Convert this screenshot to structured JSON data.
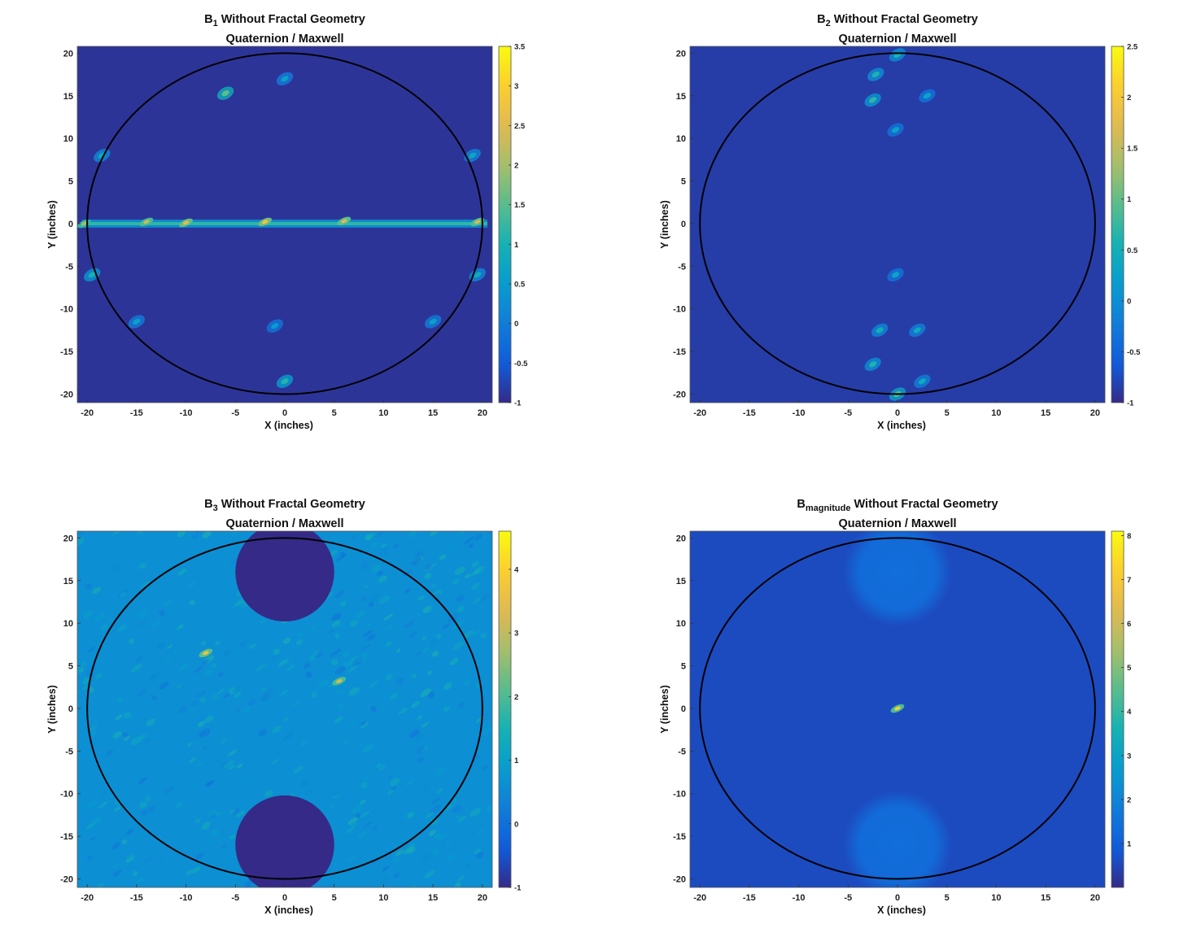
{
  "figure": {
    "panels": [
      {
        "id": "b1",
        "title_main": "B",
        "title_sub": "1",
        "title_rest": " Without Fractal Geometry",
        "subtitle": "Quaternion / Maxwell"
      },
      {
        "id": "b2",
        "title_main": "B",
        "title_sub": "2",
        "title_rest": " Without Fractal Geometry",
        "subtitle": "Quaternion / Maxwell"
      },
      {
        "id": "b3",
        "title_main": "B",
        "title_sub": "3",
        "title_rest": " Without Fractal Geometry",
        "subtitle": "Quaternion / Maxwell"
      },
      {
        "id": "bmag",
        "title_main": "B",
        "title_sub": "magnitude",
        "title_rest": " Without Fractal Geometry",
        "subtitle": "Quaternion / Maxwell"
      }
    ]
  },
  "chart_data": [
    {
      "type": "heatmap",
      "title": "B1 Without Fractal Geometry",
      "subtitle": "Quaternion / Maxwell",
      "xlabel": "X (inches)",
      "ylabel": "Y (inches)",
      "xlim": [
        -21,
        21
      ],
      "ylim": [
        -21,
        20.8
      ],
      "xticks": [
        -20,
        -15,
        -10,
        -5,
        0,
        5,
        10,
        15,
        20
      ],
      "yticks": [
        -20,
        -15,
        -10,
        -5,
        0,
        5,
        10,
        15,
        20
      ],
      "colorbar": {
        "min": -1,
        "max": 3.5,
        "ticks": [
          -1,
          -0.5,
          0,
          0.5,
          1,
          1.5,
          2,
          2.5,
          3,
          3.5
        ]
      },
      "circle": {
        "cx": 0,
        "cy": 0,
        "r": 20
      },
      "background_value": -0.9,
      "features": [
        {
          "kind": "band",
          "y": 0,
          "x0": -20.5,
          "x1": 20.5,
          "value": 1.2
        },
        {
          "kind": "blob",
          "x": -6,
          "y": 15.3,
          "value": 1.5
        },
        {
          "kind": "blob",
          "x": 0,
          "y": 17,
          "value": 0.6
        },
        {
          "kind": "blob",
          "x": -1,
          "y": -12,
          "value": 0.5
        },
        {
          "kind": "blob",
          "x": 0,
          "y": -18.5,
          "value": 1.1
        },
        {
          "kind": "blob",
          "x": -18.5,
          "y": 8,
          "value": 0.8
        },
        {
          "kind": "blob",
          "x": 19,
          "y": 8,
          "value": 0.7
        },
        {
          "kind": "blob",
          "x": -19.5,
          "y": -6,
          "value": 1.0
        },
        {
          "kind": "blob",
          "x": 19.5,
          "y": -6,
          "value": 0.8
        },
        {
          "kind": "blob",
          "x": -15,
          "y": -11.5,
          "value": 0.6
        },
        {
          "kind": "blob",
          "x": 15,
          "y": -11.5,
          "value": 0.6
        }
      ],
      "peaks": [
        {
          "x": -20.3,
          "y": 0,
          "value": 2.0
        },
        {
          "x": -14,
          "y": 0.2,
          "value": 2.3
        },
        {
          "x": -10,
          "y": 0.1,
          "value": 2.6
        },
        {
          "x": -2,
          "y": 0.2,
          "value": 2.8
        },
        {
          "x": 6,
          "y": 0.3,
          "value": 2.5
        },
        {
          "x": 19.5,
          "y": 0.2,
          "value": 2.4
        }
      ]
    },
    {
      "type": "heatmap",
      "title": "B2 Without Fractal Geometry",
      "subtitle": "Quaternion / Maxwell",
      "xlabel": "X (inches)",
      "ylabel": "Y (inches)",
      "xlim": [
        -21,
        21
      ],
      "ylim": [
        -21,
        20.8
      ],
      "xticks": [
        -20,
        -15,
        -10,
        -5,
        0,
        5,
        10,
        15,
        20
      ],
      "yticks": [
        -20,
        -15,
        -10,
        -5,
        0,
        5,
        10,
        15,
        20
      ],
      "colorbar": {
        "min": -1,
        "max": 2.5,
        "ticks": [
          -1,
          -0.5,
          0,
          0.5,
          1,
          1.5,
          2,
          2.5
        ]
      },
      "circle": {
        "cx": 0,
        "cy": 0,
        "r": 20
      },
      "background_value": -0.85,
      "features": [
        {
          "kind": "blob",
          "x": -2.5,
          "y": 14.5,
          "value": 0.7
        },
        {
          "kind": "blob",
          "x": -2.2,
          "y": 17.5,
          "value": 0.6
        },
        {
          "kind": "blob",
          "x": 0,
          "y": 19.8,
          "value": 0.6
        },
        {
          "kind": "blob",
          "x": 3,
          "y": 15,
          "value": 0.3
        },
        {
          "kind": "blob",
          "x": -0.2,
          "y": 11,
          "value": 0.3
        },
        {
          "kind": "blob",
          "x": -0.2,
          "y": -6,
          "value": 0.3
        },
        {
          "kind": "blob",
          "x": -1.8,
          "y": -12.5,
          "value": 0.5
        },
        {
          "kind": "blob",
          "x": 2,
          "y": -12.5,
          "value": 0.4
        },
        {
          "kind": "blob",
          "x": -2.5,
          "y": -16.5,
          "value": 0.6
        },
        {
          "kind": "blob",
          "x": 2.5,
          "y": -18.5,
          "value": 0.4
        },
        {
          "kind": "blob",
          "x": 0,
          "y": -20,
          "value": 0.9
        }
      ],
      "peaks": []
    },
    {
      "type": "heatmap",
      "title": "B3 Without Fractal Geometry",
      "subtitle": "Quaternion / Maxwell",
      "xlabel": "X (inches)",
      "ylabel": "Y (inches)",
      "xlim": [
        -21,
        21
      ],
      "ylim": [
        -21,
        20.8
      ],
      "xticks": [
        -20,
        -15,
        -10,
        -5,
        0,
        5,
        10,
        15,
        20
      ],
      "yticks": [
        -20,
        -15,
        -10,
        -5,
        0,
        5,
        10,
        15,
        20
      ],
      "colorbar": {
        "min": -1,
        "max": 4.6,
        "ticks": [
          -1,
          0,
          1,
          2,
          3,
          4
        ]
      },
      "circle": {
        "cx": 0,
        "cy": 0,
        "r": 20
      },
      "background_value": 0.6,
      "speckle": true,
      "features": [
        {
          "kind": "hole",
          "x": 0,
          "y": 16,
          "r": 5,
          "value": -1
        },
        {
          "kind": "hole",
          "x": 0,
          "y": -16,
          "r": 5,
          "value": -1
        }
      ],
      "peaks": [
        {
          "x": -8,
          "y": 6.5,
          "value": 3.6
        },
        {
          "x": 5.5,
          "y": 3.2,
          "value": 3.3
        }
      ]
    },
    {
      "type": "heatmap",
      "title": "Bmagnitude Without Fractal Geometry",
      "subtitle": "Quaternion / Maxwell",
      "xlabel": "X (inches)",
      "ylabel": "Y (inches)",
      "xlim": [
        -21,
        21
      ],
      "ylim": [
        -21,
        20.8
      ],
      "xticks": [
        -20,
        -15,
        -10,
        -5,
        0,
        5,
        10,
        15,
        20
      ],
      "yticks": [
        -20,
        -15,
        -10,
        -5,
        0,
        5,
        10,
        15,
        20
      ],
      "colorbar": {
        "min": 0,
        "max": 8.1,
        "ticks": [
          1,
          2,
          3,
          4,
          5,
          6,
          7,
          8
        ]
      },
      "circle": {
        "cx": 0,
        "cy": 0,
        "r": 20
      },
      "background_value": 0.6,
      "features": [
        {
          "kind": "soft",
          "x": 0,
          "y": 16,
          "r": 5.5,
          "value": 1.4
        },
        {
          "kind": "soft",
          "x": 0,
          "y": -16,
          "r": 5.5,
          "value": 1.4
        }
      ],
      "peaks": [
        {
          "x": 0,
          "y": 0,
          "value": 7.2
        }
      ]
    }
  ]
}
